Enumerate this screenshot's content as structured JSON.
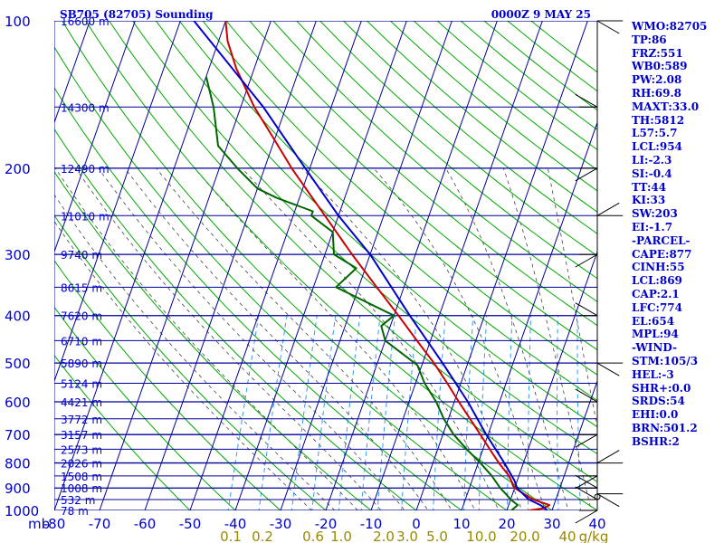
{
  "header": {
    "left_title": "SB705 (82705) Sounding",
    "right_title": "0000Z  9 MAY 25"
  },
  "stats": [
    "WMO:82705",
    "TP:86",
    "FRZ:551",
    "WB0:589",
    "PW:2.08",
    "RH:69.8",
    "MAXT:33.0",
    "TH:5812",
    "L57:5.7",
    "LCL:954",
    "LI:-2.3",
    "SI:-0.4",
    "TT:44",
    "KI:33",
    "SW:203",
    "EI:-1.7",
    "-PARCEL-",
    "CAPE:877",
    "CINH:55",
    "LCL:869",
    "CAP:2.1",
    "LFC:774",
    "EL:654",
    "MPL:94",
    "-WIND-",
    "STM:105/3",
    "HEL:-3",
    "SHR+:0.0",
    "SRDS:54",
    "EHI:0.0",
    "BRN:501.2",
    "BSHR:2"
  ],
  "colors": {
    "axis_text": "#0000cc",
    "isobar": "#000099",
    "dry_adiabat": "#00aa00",
    "moist_adiabat": "#444444",
    "mixing_ratio": "#3399ff",
    "temperature": "#cc0000",
    "dewpoint": "#006600",
    "parcel": "#0000cc"
  },
  "chart_data": {
    "type": "line",
    "chart_kind": "skew-T log-P sounding",
    "y_axis": {
      "scale": "log",
      "units": "mb",
      "ticks": [
        100,
        200,
        300,
        400,
        500,
        600,
        700,
        800,
        900,
        1000
      ],
      "range": [
        100,
        1000
      ]
    },
    "x_axis": {
      "label": "mb",
      "ticks": [
        -80,
        -70,
        -60,
        -50,
        -40,
        -30,
        -20,
        -10,
        0,
        10,
        20,
        30,
        40
      ],
      "range": [
        -80,
        40
      ]
    },
    "mixing_ratio_labels": [
      "0.1",
      "0.2",
      "0.6",
      "1.0",
      "2.0",
      "3.0",
      "5.0",
      "10.0",
      "20.0",
      "40",
      "g/kg"
    ],
    "height_labels": [
      {
        "p": 100,
        "label": "16600 m"
      },
      {
        "p": 150,
        "label": "14300 m"
      },
      {
        "p": 200,
        "label": "12490 m"
      },
      {
        "p": 250,
        "label": "11010 m"
      },
      {
        "p": 300,
        "label": "9740 m"
      },
      {
        "p": 350,
        "label": "8615 m"
      },
      {
        "p": 400,
        "label": "7620 m"
      },
      {
        "p": 450,
        "label": "6710 m"
      },
      {
        "p": 500,
        "label": "5890 m"
      },
      {
        "p": 550,
        "label": "5124 m"
      },
      {
        "p": 600,
        "label": "4421 m"
      },
      {
        "p": 650,
        "label": "3772 m"
      },
      {
        "p": 700,
        "label": "3157 m"
      },
      {
        "p": 750,
        "label": "2573 m"
      },
      {
        "p": 800,
        "label": "2026 m"
      },
      {
        "p": 850,
        "label": "1508 m"
      },
      {
        "p": 900,
        "label": "1008 m"
      },
      {
        "p": 950,
        "label": "532 m"
      },
      {
        "p": 1000,
        "label": "78 m"
      }
    ],
    "series": [
      {
        "id": "temperature",
        "points": [
          [
            1007,
            24.5
          ],
          [
            1000,
            25
          ],
          [
            990,
            28
          ],
          [
            975,
            29
          ],
          [
            950,
            25
          ],
          [
            925,
            22.5
          ],
          [
            900,
            20
          ],
          [
            850,
            17.8
          ],
          [
            800,
            14.6
          ],
          [
            750,
            11.5
          ],
          [
            700,
            8.3
          ],
          [
            650,
            4.8
          ],
          [
            600,
            1
          ],
          [
            550,
            -3
          ],
          [
            500,
            -7.5
          ],
          [
            450,
            -13
          ],
          [
            400,
            -19
          ],
          [
            350,
            -26
          ],
          [
            300,
            -34
          ],
          [
            250,
            -43
          ],
          [
            200,
            -54
          ],
          [
            175,
            -60
          ],
          [
            150,
            -67
          ],
          [
            125,
            -74
          ],
          [
            110,
            -78
          ],
          [
            100,
            -80
          ]
        ]
      },
      {
        "id": "dewpoint",
        "points": [
          [
            1007,
            20.5
          ],
          [
            1000,
            21
          ],
          [
            975,
            22
          ],
          [
            950,
            20
          ],
          [
            925,
            18.5
          ],
          [
            900,
            16.8
          ],
          [
            850,
            14
          ],
          [
            800,
            10.5
          ],
          [
            750,
            6.4
          ],
          [
            700,
            2.4
          ],
          [
            650,
            -1
          ],
          [
            600,
            -4
          ],
          [
            550,
            -8
          ],
          [
            505,
            -11
          ],
          [
            450,
            -20
          ],
          [
            420,
            -22
          ],
          [
            400,
            -20
          ],
          [
            350,
            -35
          ],
          [
            320,
            -32
          ],
          [
            300,
            -38
          ],
          [
            270,
            -40
          ],
          [
            250,
            -46
          ],
          [
            245,
            -46
          ],
          [
            230,
            -55
          ],
          [
            220,
            -60
          ],
          [
            200,
            -66
          ],
          [
            180,
            -72
          ],
          [
            150,
            -76
          ],
          [
            130,
            -80
          ]
        ]
      },
      {
        "id": "parcel",
        "points": [
          [
            1000,
            29
          ],
          [
            975,
            27
          ],
          [
            950,
            24
          ],
          [
            900,
            20.5
          ],
          [
            869,
            19.4
          ],
          [
            800,
            15.8
          ],
          [
            700,
            9.6
          ],
          [
            600,
            3
          ],
          [
            500,
            -5.6
          ],
          [
            400,
            -16.5
          ],
          [
            300,
            -30
          ],
          [
            250,
            -40
          ],
          [
            200,
            -51
          ],
          [
            150,
            -65
          ],
          [
            100,
            -87
          ]
        ]
      }
    ],
    "wind_barbs_mb": [
      100,
      150,
      200,
      250,
      300,
      400,
      500,
      600,
      700,
      800,
      850,
      900,
      925,
      950,
      1000
    ]
  }
}
